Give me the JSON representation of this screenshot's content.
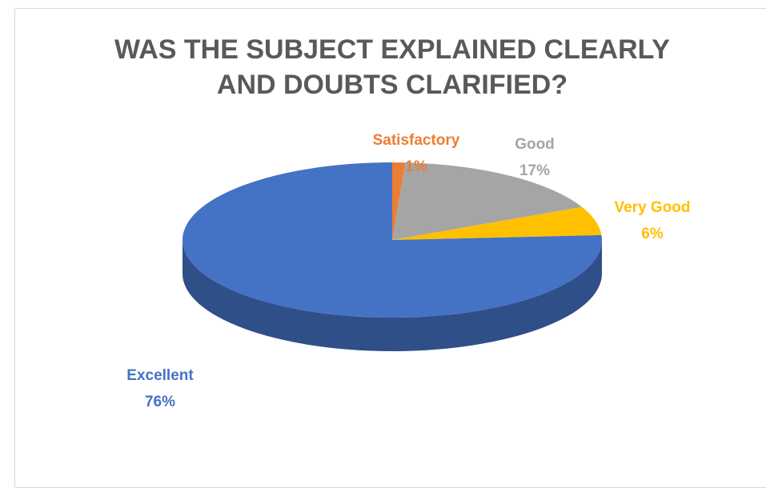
{
  "chart_data": {
    "type": "pie",
    "title": "WAS THE SUBJECT EXPLAINED CLEARLY AND DOUBTS CLARIFIED?",
    "categories": [
      "Satisfactory",
      "Good",
      "Very Good",
      "Excellent"
    ],
    "values": [
      1,
      17,
      6,
      76
    ],
    "value_labels": [
      "1%",
      "17%",
      "6%",
      "76%"
    ],
    "colors": [
      "#ED7D31",
      "#A5A5A5",
      "#FFC000",
      "#4472C4"
    ]
  }
}
